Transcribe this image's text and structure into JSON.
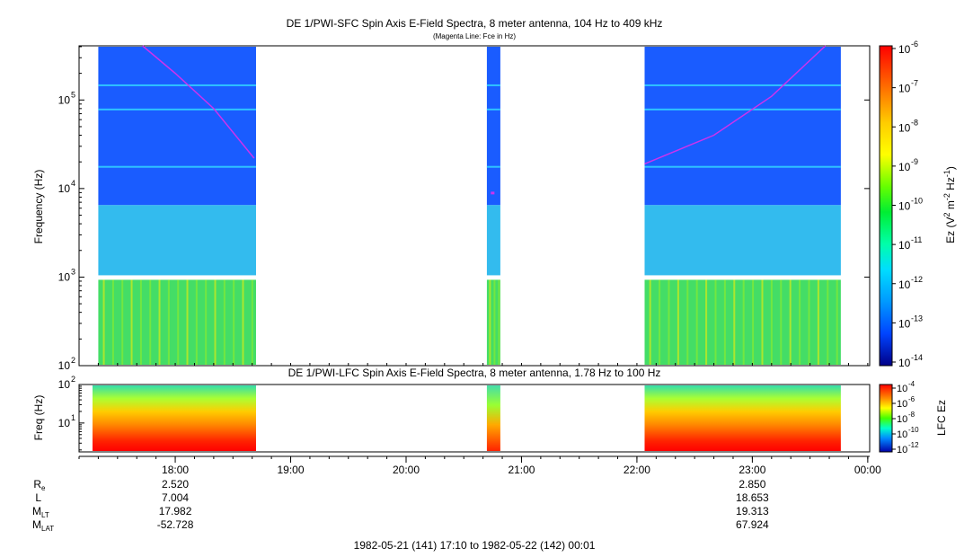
{
  "chart_data": {
    "type": "heatmap",
    "top_panel": {
      "title": "DE 1/PWI-SFC  Spin Axis E-Field Spectra, 8 meter antenna, 104 Hz to 409 kHz",
      "subtitle": "(Magenta Line: Fce in Hz)",
      "ylabel": "Frequency (Hz)",
      "yscale": "log",
      "ylim": [
        100,
        409000
      ],
      "ytick_labels": [
        "10",
        "10",
        "10",
        "10"
      ],
      "ytick_exponents": [
        "2",
        "3",
        "4",
        "5"
      ],
      "colorbar_label": "Ez (V",
      "colorbar_label_parts": [
        "2",
        " m",
        "-2",
        " Hz",
        "-1",
        ")"
      ],
      "colorbar_ticks": [
        "10",
        "10",
        "10",
        "10",
        "10",
        "10",
        "10",
        "10",
        "10"
      ],
      "colorbar_exponents": [
        "-6",
        "-7",
        "-8",
        "-9",
        "-10",
        "-11",
        "-12",
        "-13",
        "-14"
      ],
      "line_color": "#cc33ee",
      "data_intervals": [
        {
          "start": "17:20",
          "end": "18:42"
        },
        {
          "start": "20:42",
          "end": "20:49"
        },
        {
          "start": "22:04",
          "end": "23:46"
        }
      ],
      "fce_line": [
        {
          "time": "17:43",
          "fce_hz": 409000
        },
        {
          "time": "18:00",
          "fce_hz": 200000
        },
        {
          "time": "18:20",
          "fce_hz": 80000
        },
        {
          "time": "18:41",
          "fce_hz": 22000
        },
        {
          "time": "20:45",
          "fce_hz": 9000
        },
        {
          "time": "22:04",
          "fce_hz": 19000
        },
        {
          "time": "22:40",
          "fce_hz": 40000
        },
        {
          "time": "23:10",
          "fce_hz": 110000
        },
        {
          "time": "23:38",
          "fce_hz": 409000
        }
      ]
    },
    "bottom_panel": {
      "title": "DE 1/PWI-LFC  Spin Axis E-Field Spectra, 8 meter antenna, 1.78 Hz to 100 Hz",
      "ylabel": "Freq (Hz)",
      "yscale": "log",
      "ylim": [
        1.78,
        100
      ],
      "ytick_labels": [
        "10",
        "10"
      ],
      "ytick_exponents": [
        "2",
        "1"
      ],
      "colorbar_label": "LFC Ez",
      "colorbar_ticks": [
        "10",
        "10",
        "10",
        "10",
        "10"
      ],
      "colorbar_exponents": [
        "-4",
        "-6",
        "-8",
        "-10",
        "-12"
      ],
      "data_intervals": [
        {
          "start": "17:17",
          "end": "18:42"
        },
        {
          "start": "20:42",
          "end": "20:49"
        },
        {
          "start": "22:04",
          "end": "23:46"
        }
      ]
    },
    "x_axis": {
      "start": "17:10",
      "end": "00:01",
      "tick_labels": [
        "18:00",
        "19:00",
        "20:00",
        "21:00",
        "22:00",
        "23:00",
        "00:00"
      ],
      "range_label": "1982-05-21 (141) 17:10 to 1982-05-22 (142) 00:01"
    },
    "ephemeris": {
      "rows": [
        {
          "label": "R",
          "sub": "e",
          "values": [
            "2.520",
            "2.850"
          ]
        },
        {
          "label": "L",
          "sub": "",
          "values": [
            "7.004",
            "18.653"
          ]
        },
        {
          "label": "M",
          "sub": "LT",
          "values": [
            "17.982",
            "19.313"
          ]
        },
        {
          "label": "M",
          "sub": "LAT",
          "values": [
            "-52.728",
            "67.924"
          ]
        }
      ],
      "times": [
        "18:00",
        "23:00"
      ]
    }
  }
}
